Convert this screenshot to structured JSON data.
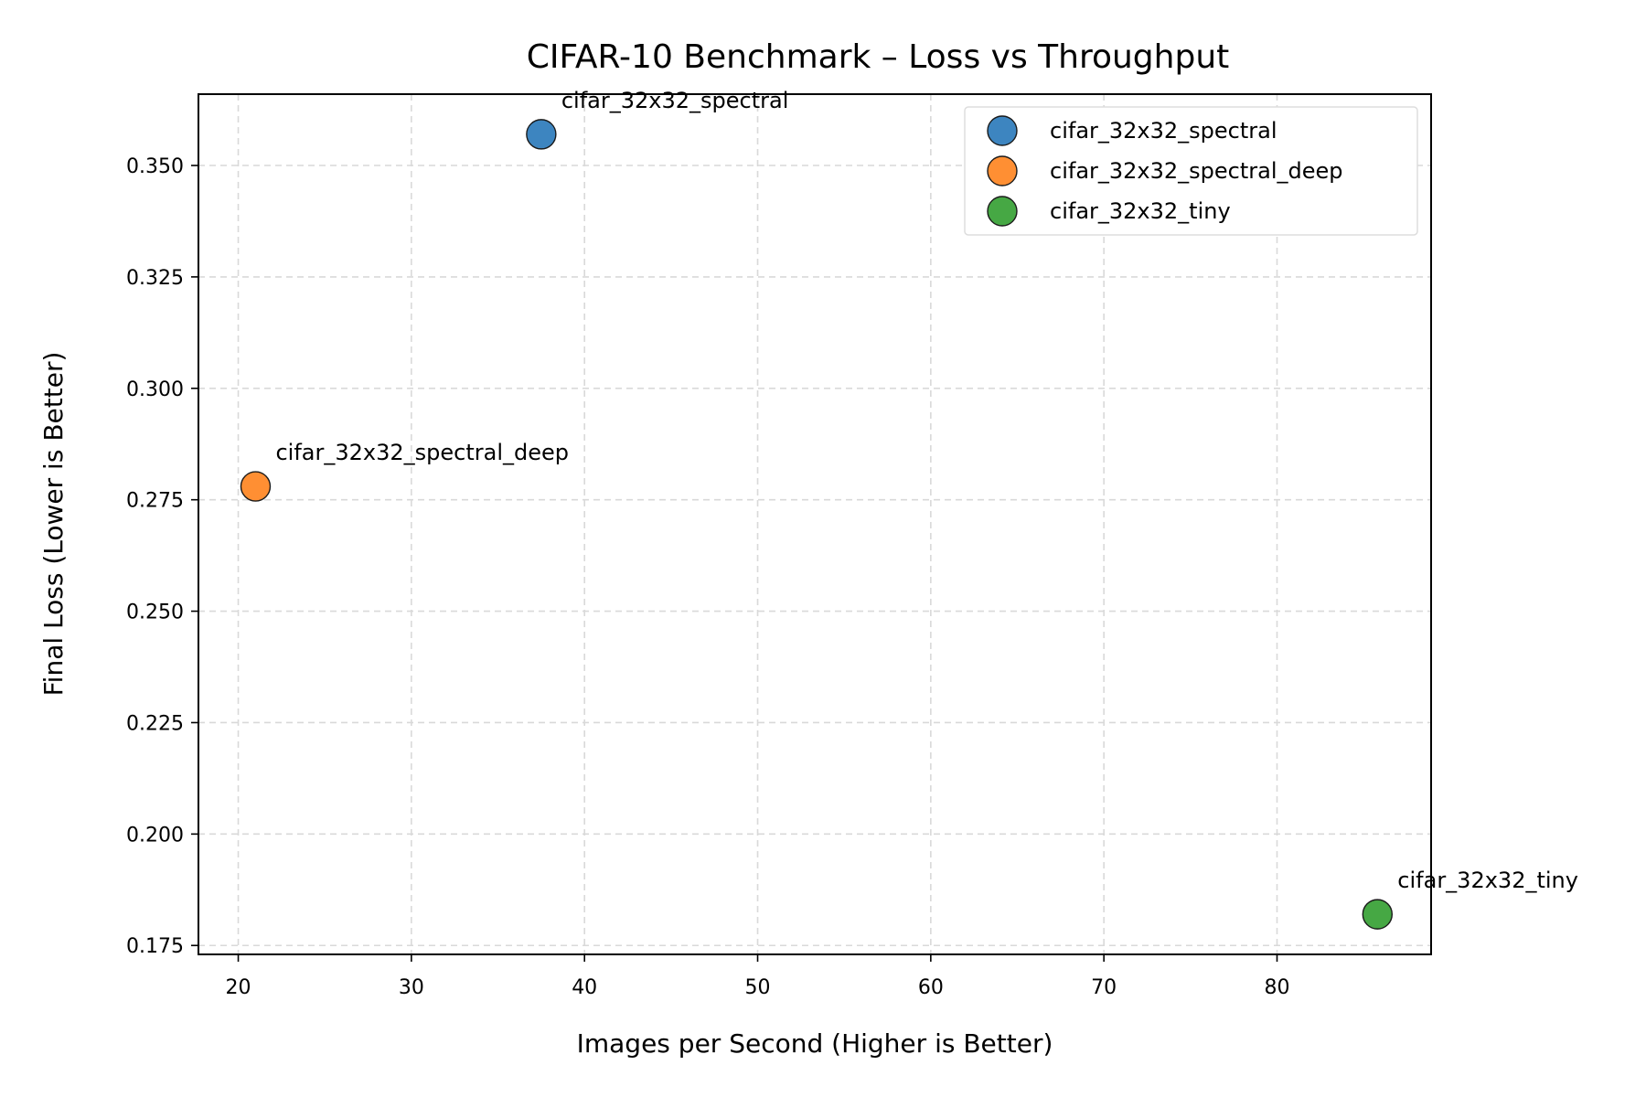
{
  "chart_data": {
    "type": "scatter",
    "title": "CIFAR-10 Benchmark – Loss vs Throughput",
    "xlabel": "Images per Second (Higher is Better)",
    "ylabel": "Final Loss (Lower is Better)",
    "xlim": [
      17.7,
      88.9
    ],
    "ylim": [
      0.173,
      0.366
    ],
    "xticks": [
      20,
      30,
      40,
      50,
      60,
      70,
      80
    ],
    "yticks": [
      0.175,
      0.2,
      0.225,
      0.25,
      0.275,
      0.3,
      0.325,
      0.35
    ],
    "xtick_labels": [
      "20",
      "30",
      "40",
      "50",
      "60",
      "70",
      "80"
    ],
    "ytick_labels": [
      "0.175",
      "0.200",
      "0.225",
      "0.250",
      "0.275",
      "0.300",
      "0.325",
      "0.350"
    ],
    "grid": true,
    "legend_position": "top-right",
    "series": [
      {
        "name": "cifar_32x32_spectral",
        "label": "cifar_32x32_spectral",
        "x": 37.5,
        "y": 0.357,
        "color": "#3d85c0"
      },
      {
        "name": "cifar_32x32_spectral_deep",
        "label": "cifar_32x32_spectral_deep",
        "x": 21.0,
        "y": 0.278,
        "color": "#ff8f33"
      },
      {
        "name": "cifar_32x32_tiny",
        "label": "cifar_32x32_tiny",
        "x": 85.8,
        "y": 0.182,
        "color": "#46a844"
      }
    ]
  }
}
